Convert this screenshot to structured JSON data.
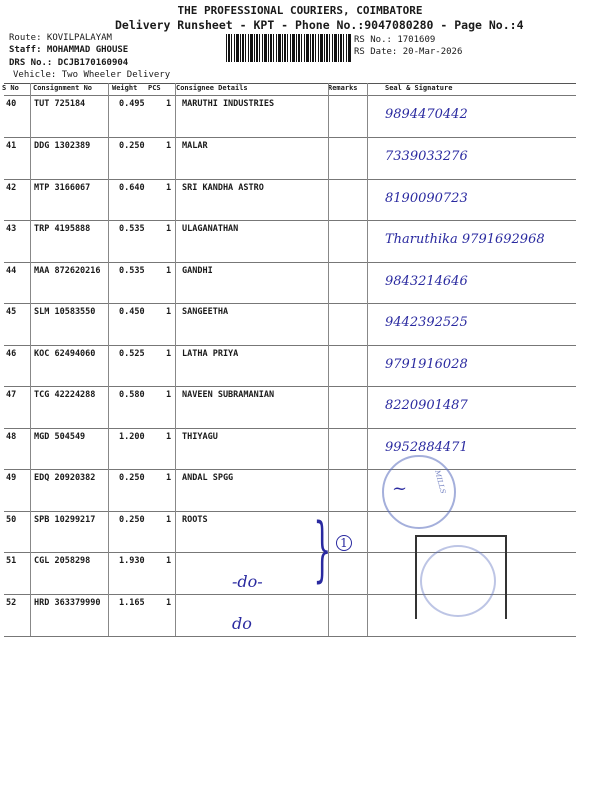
{
  "header": {
    "company": "THE PROFESSIONAL COURIERS, COIMBATORE",
    "subtitle": "Delivery Runsheet - KPT - Phone No.:9047080280 - Page No.:4",
    "route": "Route: KOVILPALAYAM",
    "staff": "Staff: MOHAMMAD GHOUSE",
    "drs": "DRS No.: DCJB170160904",
    "vehicle": "Vehicle: Two Wheeler Delivery",
    "rs_no": "RS No.: 1701609",
    "rs_date": "RS Date: 20-Mar-2026"
  },
  "columns": {
    "sno": "S No",
    "consignment": "Consignment No",
    "weight": "Weight",
    "pcs": "PCS",
    "consignee": "Consignee Details",
    "remarks": "Remarks",
    "seal": "Seal & Signature"
  },
  "rows": [
    {
      "sno": "40",
      "cn": "TUT 725184",
      "weight": "0.495",
      "pcs": "1",
      "consignee": "MARUTHI INDUSTRIES",
      "sig": "9894470442"
    },
    {
      "sno": "41",
      "cn": "DDG 1302389",
      "weight": "0.250",
      "pcs": "1",
      "consignee": "MALAR",
      "sig": "7339033276"
    },
    {
      "sno": "42",
      "cn": "MTP 3166067",
      "weight": "0.640",
      "pcs": "1",
      "consignee": "SRI KANDHA ASTRO",
      "sig": "8190090723"
    },
    {
      "sno": "43",
      "cn": "TRP 4195888",
      "weight": "0.535",
      "pcs": "1",
      "consignee": "ULAGANATHAN",
      "sig": "Tharuthika 9791692968"
    },
    {
      "sno": "44",
      "cn": "MAA 872620216",
      "weight": "0.535",
      "pcs": "1",
      "consignee": "GANDHI",
      "sig": "9843214646"
    },
    {
      "sno": "45",
      "cn": "SLM 10583550",
      "weight": "0.450",
      "pcs": "1",
      "consignee": "SANGEETHA",
      "sig": "9442392525"
    },
    {
      "sno": "46",
      "cn": "KOC 62494060",
      "weight": "0.525",
      "pcs": "1",
      "consignee": "LATHA PRIYA",
      "sig": "9791916028"
    },
    {
      "sno": "47",
      "cn": "TCG 42224288",
      "weight": "0.580",
      "pcs": "1",
      "consignee": "NAVEEN SUBRAMANIAN",
      "sig": "8220901487"
    },
    {
      "sno": "48",
      "cn": "MGD 504549",
      "weight": "1.200",
      "pcs": "1",
      "consignee": "THIYAGU",
      "sig": "9952884471"
    },
    {
      "sno": "49",
      "cn": "EDQ 20920382",
      "weight": "0.250",
      "pcs": "1",
      "consignee": "ANDAL SPGG",
      "sig": ""
    },
    {
      "sno": "50",
      "cn": "SPB 10299217",
      "weight": "0.250",
      "pcs": "1",
      "consignee": "ROOTS",
      "sig": ""
    },
    {
      "sno": "51",
      "cn": "CGL 2058298",
      "weight": "1.930",
      "pcs": "1",
      "consignee": "-do-",
      "sig": ""
    },
    {
      "sno": "52",
      "cn": "HRD 363379990",
      "weight": "1.165",
      "pcs": "1",
      "consignee": "do",
      "sig": ""
    }
  ],
  "remarks_mark": "1",
  "stamp_text": "MILLS",
  "ink_color": "#2a2aa0"
}
